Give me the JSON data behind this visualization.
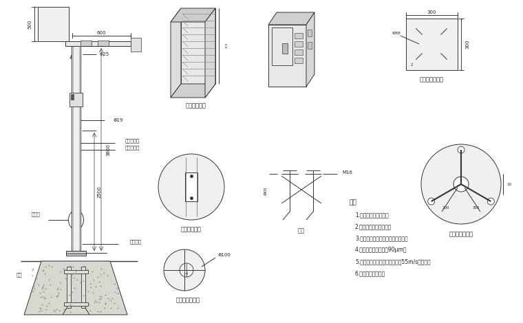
{
  "bg_color": "#ffffff",
  "line_color": "#333333",
  "notes": [
    "说明",
    "1.主干为国标镀锌管。",
    "2.上下法兰加强筋连接。",
    "3.喷涂后不再进行任何加工和焊接。",
    "4.钢管镀锌锌层厚度为90μm。",
    "5.立杆、横臂和其它部件应能抗55m/s的风速。",
    "6.接触、避雷针可拆"
  ],
  "dim_500": "500",
  "dim_600": "600",
  "dim_phi25": "Φ25",
  "dim_phi19": "Φ19",
  "dim_3800": "3800",
  "dim_2500": "2500",
  "label_upper": "上段末色板",
  "label_lower": "下段哑光色",
  "label_jiexiu": "检修孔",
  "label_dizuo": "底座法兰",
  "label_dilong": "地笼",
  "label_box1": "防水箱放大图",
  "label_hole": "维修孔放大图",
  "label_flange": "桩机法兰放大图",
  "label_base_front": "底座法兰正视图",
  "label_base_large": "底座法兰放大图",
  "label_dilong2": "地笼",
  "label_M16": "M16",
  "label_phi100": "Φ100",
  "label_phi88": "Φ88",
  "label_300a": "300",
  "label_300b": "300",
  "label_shuoming": "说明"
}
